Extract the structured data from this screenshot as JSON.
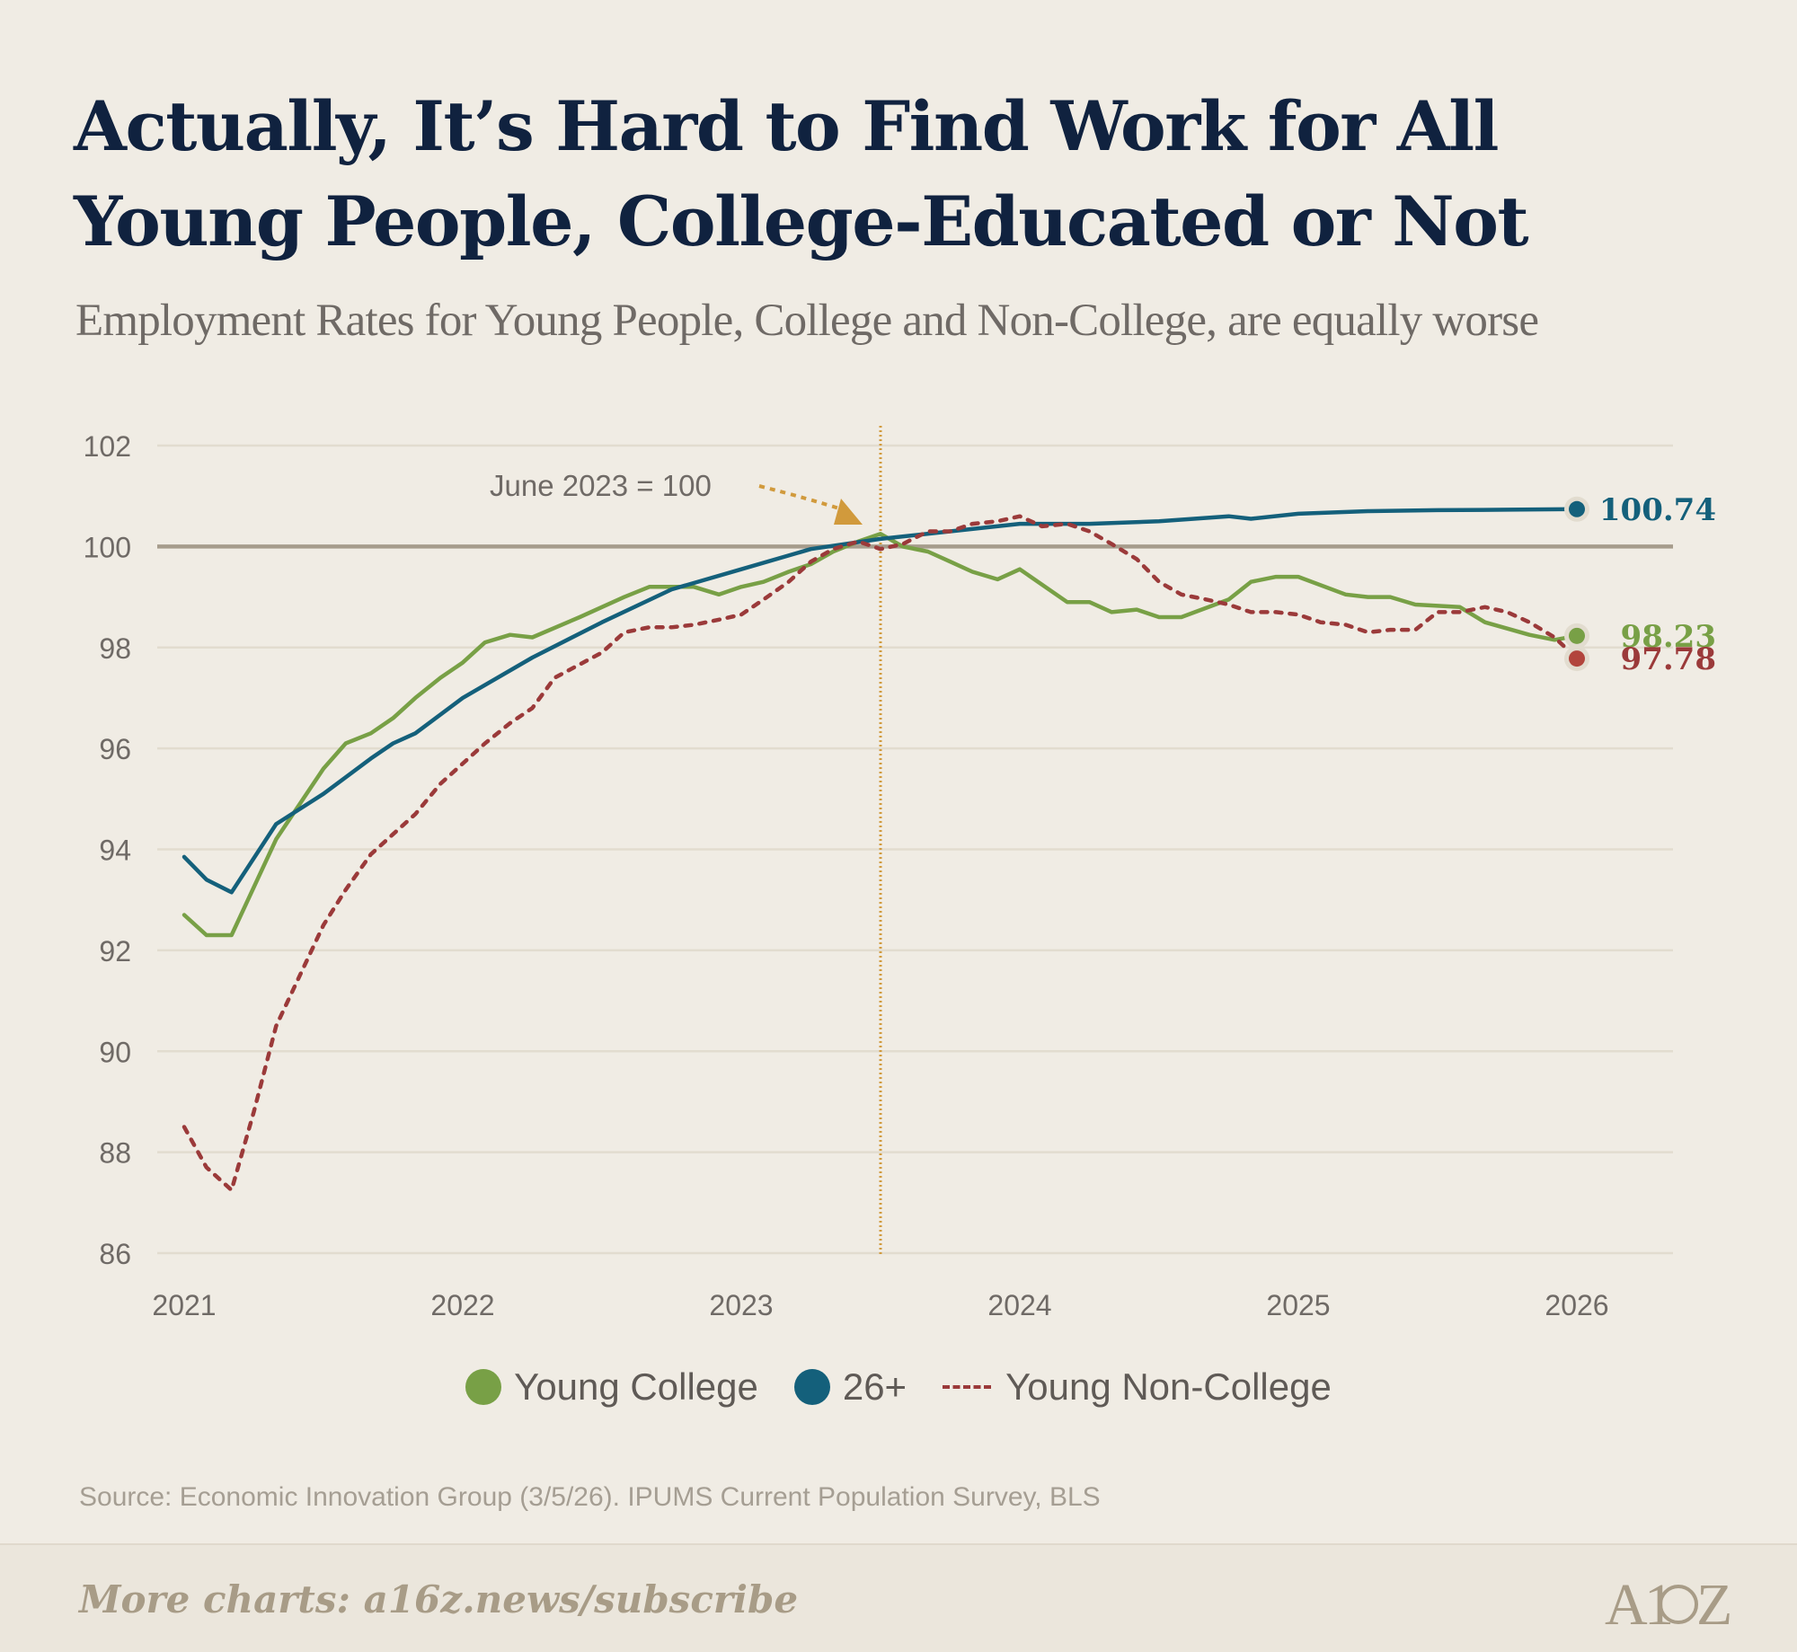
{
  "title": "Actually, It’s Hard to Find Work for All Young People, College-Educated or Not",
  "subtitle": "Employment Rates for Young People, College and Non-College, are equally worse",
  "annotation": "June 2023 = 100",
  "source": "Source: Economic Innovation Group (3/5/26). IPUMS Current Population Survey, BLS",
  "footer": {
    "text": "More charts: a16z.news/subscribe",
    "logo": "A16Z"
  },
  "colors": {
    "background": "#f0ece4",
    "young_college": "#78a046",
    "age_26_plus": "#14607b",
    "young_non_college": "#9b3a3a",
    "baseline": "#a69c8c",
    "annotation": "#d19a3c",
    "grid": "#e2dccf"
  },
  "chart_data": {
    "type": "line",
    "ylim": [
      86,
      102
    ],
    "yticks": [
      86,
      88,
      90,
      92,
      94,
      96,
      98,
      100,
      102
    ],
    "xlim": [
      2021,
      2026.4
    ],
    "xticks": [
      "2021",
      "2022",
      "2023",
      "2024",
      "2025",
      "2026"
    ],
    "baseline": 100,
    "reference_date": 2023.5,
    "grid": true,
    "legend": "bottom-center",
    "series": [
      {
        "name": "Young College",
        "color": "#78a046",
        "style": "solid",
        "end_label": "98.23",
        "points": [
          [
            2021.0,
            92.7
          ],
          [
            2021.08,
            92.3
          ],
          [
            2021.17,
            92.3
          ],
          [
            2021.33,
            94.2
          ],
          [
            2021.5,
            95.6
          ],
          [
            2021.58,
            96.1
          ],
          [
            2021.67,
            96.3
          ],
          [
            2021.75,
            96.6
          ],
          [
            2021.83,
            97.0
          ],
          [
            2021.92,
            97.4
          ],
          [
            2022.0,
            97.7
          ],
          [
            2022.08,
            98.1
          ],
          [
            2022.17,
            98.25
          ],
          [
            2022.25,
            98.2
          ],
          [
            2022.42,
            98.6
          ],
          [
            2022.58,
            99.0
          ],
          [
            2022.67,
            99.2
          ],
          [
            2022.75,
            99.2
          ],
          [
            2022.83,
            99.2
          ],
          [
            2022.92,
            99.05
          ],
          [
            2023.0,
            99.2
          ],
          [
            2023.08,
            99.3
          ],
          [
            2023.17,
            99.5
          ],
          [
            2023.25,
            99.65
          ],
          [
            2023.33,
            99.9
          ],
          [
            2023.42,
            100.1
          ],
          [
            2023.5,
            100.25
          ],
          [
            2023.58,
            100.0
          ],
          [
            2023.67,
            99.9
          ],
          [
            2023.75,
            99.7
          ],
          [
            2023.83,
            99.5
          ],
          [
            2023.92,
            99.35
          ],
          [
            2024.0,
            99.55
          ],
          [
            2024.17,
            98.9
          ],
          [
            2024.25,
            98.9
          ],
          [
            2024.33,
            98.7
          ],
          [
            2024.42,
            98.75
          ],
          [
            2024.5,
            98.6
          ],
          [
            2024.58,
            98.6
          ],
          [
            2024.75,
            98.95
          ],
          [
            2024.83,
            99.3
          ],
          [
            2024.92,
            99.4
          ],
          [
            2025.0,
            99.4
          ],
          [
            2025.17,
            99.05
          ],
          [
            2025.25,
            99.0
          ],
          [
            2025.33,
            99.0
          ],
          [
            2025.42,
            98.85
          ],
          [
            2025.58,
            98.8
          ],
          [
            2025.67,
            98.5
          ],
          [
            2025.83,
            98.25
          ],
          [
            2025.92,
            98.15
          ],
          [
            2026.0,
            98.23
          ]
        ]
      },
      {
        "name": "26+",
        "color": "#14607b",
        "style": "solid",
        "end_label": "100.74",
        "points": [
          [
            2021.0,
            93.85
          ],
          [
            2021.08,
            93.4
          ],
          [
            2021.17,
            93.15
          ],
          [
            2021.33,
            94.5
          ],
          [
            2021.5,
            95.1
          ],
          [
            2021.67,
            95.8
          ],
          [
            2021.75,
            96.1
          ],
          [
            2021.83,
            96.3
          ],
          [
            2022.0,
            97.0
          ],
          [
            2022.25,
            97.8
          ],
          [
            2022.5,
            98.5
          ],
          [
            2022.75,
            99.15
          ],
          [
            2023.0,
            99.55
          ],
          [
            2023.25,
            99.95
          ],
          [
            2023.5,
            100.15
          ],
          [
            2023.75,
            100.3
          ],
          [
            2024.0,
            100.45
          ],
          [
            2024.25,
            100.45
          ],
          [
            2024.5,
            100.5
          ],
          [
            2024.75,
            100.6
          ],
          [
            2024.83,
            100.55
          ],
          [
            2025.0,
            100.65
          ],
          [
            2025.25,
            100.7
          ],
          [
            2025.5,
            100.72
          ],
          [
            2025.75,
            100.73
          ],
          [
            2026.0,
            100.74
          ]
        ]
      },
      {
        "name": "Young Non-College",
        "color": "#9b3a3a",
        "style": "dashed",
        "end_label": "97.78",
        "points": [
          [
            2021.0,
            88.5
          ],
          [
            2021.08,
            87.7
          ],
          [
            2021.17,
            87.25
          ],
          [
            2021.25,
            88.8
          ],
          [
            2021.33,
            90.5
          ],
          [
            2021.5,
            92.5
          ],
          [
            2021.58,
            93.2
          ],
          [
            2021.67,
            93.9
          ],
          [
            2021.75,
            94.3
          ],
          [
            2021.83,
            94.7
          ],
          [
            2021.92,
            95.3
          ],
          [
            2022.0,
            95.7
          ],
          [
            2022.08,
            96.1
          ],
          [
            2022.17,
            96.5
          ],
          [
            2022.25,
            96.8
          ],
          [
            2022.33,
            97.4
          ],
          [
            2022.5,
            97.9
          ],
          [
            2022.58,
            98.3
          ],
          [
            2022.67,
            98.4
          ],
          [
            2022.75,
            98.4
          ],
          [
            2022.83,
            98.45
          ],
          [
            2022.92,
            98.55
          ],
          [
            2023.0,
            98.65
          ],
          [
            2023.08,
            98.95
          ],
          [
            2023.17,
            99.3
          ],
          [
            2023.25,
            99.7
          ],
          [
            2023.33,
            99.95
          ],
          [
            2023.42,
            100.1
          ],
          [
            2023.5,
            99.95
          ],
          [
            2023.58,
            100.05
          ],
          [
            2023.67,
            100.3
          ],
          [
            2023.75,
            100.3
          ],
          [
            2023.83,
            100.45
          ],
          [
            2023.92,
            100.5
          ],
          [
            2024.0,
            100.6
          ],
          [
            2024.08,
            100.4
          ],
          [
            2024.17,
            100.45
          ],
          [
            2024.25,
            100.3
          ],
          [
            2024.33,
            100.05
          ],
          [
            2024.42,
            99.75
          ],
          [
            2024.5,
            99.3
          ],
          [
            2024.58,
            99.05
          ],
          [
            2024.67,
            98.95
          ],
          [
            2024.75,
            98.85
          ],
          [
            2024.83,
            98.7
          ],
          [
            2024.92,
            98.7
          ],
          [
            2025.0,
            98.65
          ],
          [
            2025.08,
            98.5
          ],
          [
            2025.17,
            98.45
          ],
          [
            2025.25,
            98.3
          ],
          [
            2025.33,
            98.35
          ],
          [
            2025.42,
            98.35
          ],
          [
            2025.5,
            98.7
          ],
          [
            2025.58,
            98.7
          ],
          [
            2025.67,
            98.8
          ],
          [
            2025.75,
            98.7
          ],
          [
            2025.83,
            98.5
          ],
          [
            2025.92,
            98.2
          ],
          [
            2026.0,
            97.78
          ]
        ]
      }
    ]
  }
}
